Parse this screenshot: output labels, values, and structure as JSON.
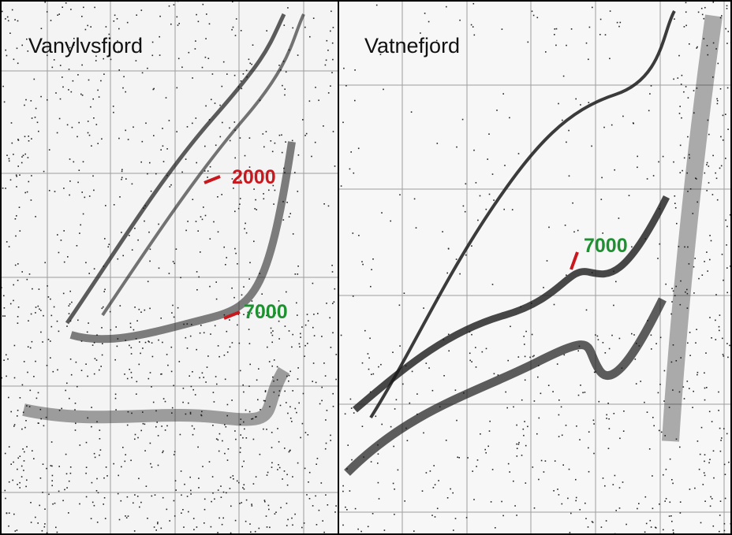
{
  "panels": [
    {
      "title": "Vanylvsfjord",
      "annotations": [
        {
          "label": "2000",
          "color": "#c8171d"
        },
        {
          "label": "7000",
          "color": "#1d9130"
        }
      ]
    },
    {
      "title": "Vatnefjord",
      "annotations": [
        {
          "label": "7000",
          "color": "#1d9130"
        }
      ]
    }
  ]
}
